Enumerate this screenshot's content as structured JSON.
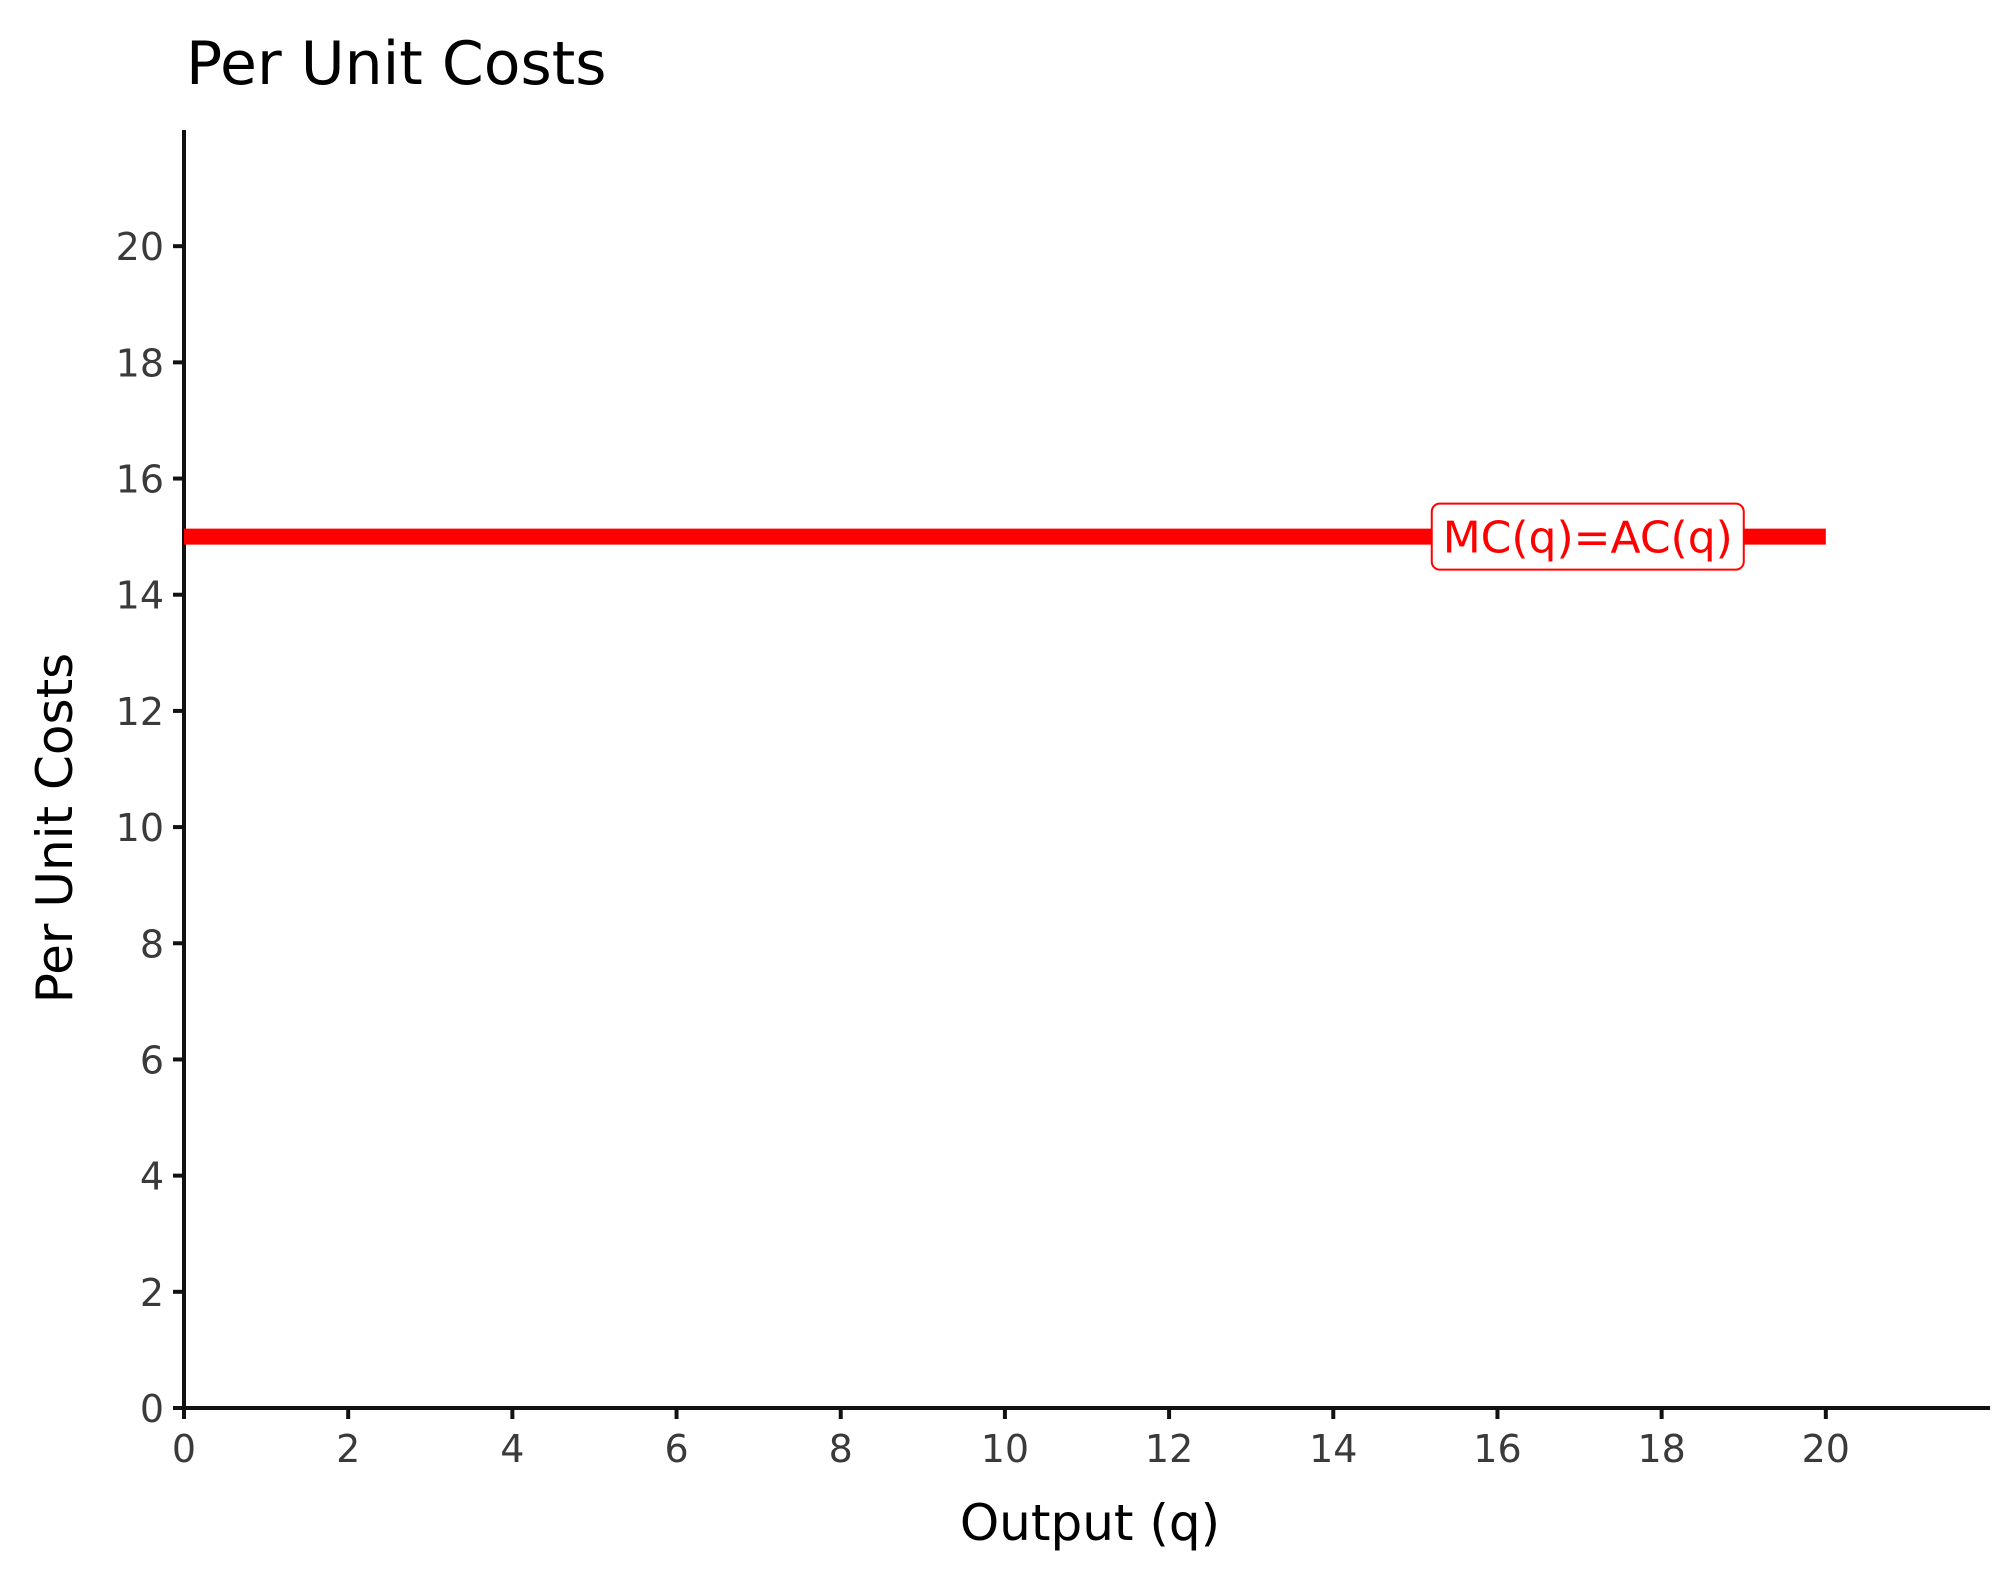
{
  "chart_data": {
    "type": "line",
    "title": "Per Unit Costs",
    "xlabel": "Output (q)",
    "ylabel": "Per Unit Costs",
    "xlim": [
      0,
      22
    ],
    "ylim": [
      0,
      22
    ],
    "x_ticks": [
      0,
      2,
      4,
      6,
      8,
      10,
      12,
      14,
      16,
      18,
      20
    ],
    "y_ticks": [
      0,
      2,
      4,
      6,
      8,
      10,
      12,
      14,
      16,
      18,
      20
    ],
    "grid": false,
    "series": [
      {
        "x": [
          0,
          20
        ],
        "y": [
          15,
          15
        ],
        "color": "#ff0000"
      }
    ],
    "annotations": [
      {
        "text": "MC(q)=AC(q)",
        "x": 17.1,
        "y": 15,
        "color": "#ff0000"
      }
    ]
  }
}
